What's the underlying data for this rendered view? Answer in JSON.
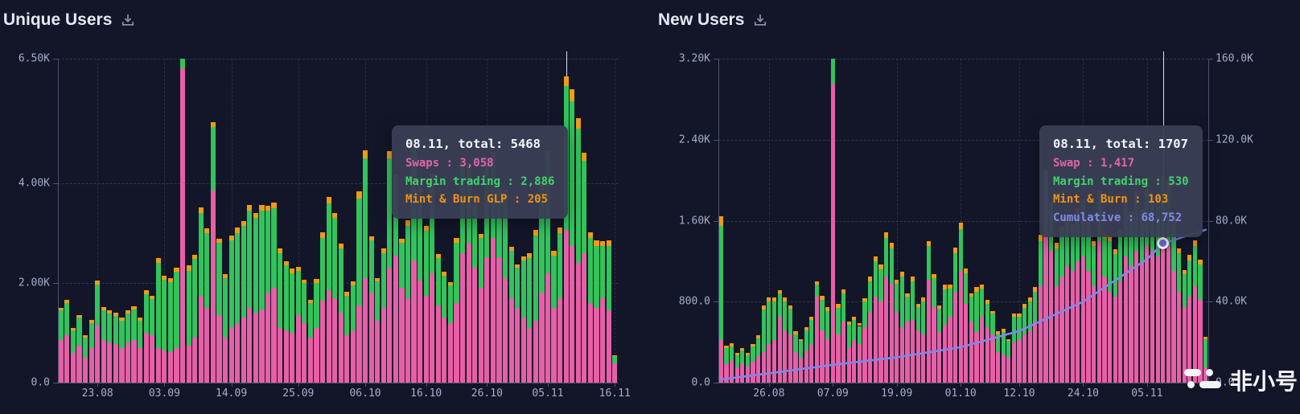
{
  "page": {
    "background": "#131629"
  },
  "watermark": {
    "text": "非小号",
    "color": "#f4f5f9"
  },
  "chart_data": [
    {
      "type": "bar",
      "stacked": true,
      "title": "Unique Users",
      "grid": true,
      "legend_position": "none",
      "x_tick_labels": [
        "23.08",
        "03.09",
        "14.09",
        "25.09",
        "06.10",
        "16.10",
        "26.10",
        "05.11",
        "16.11"
      ],
      "x_tick_indices": [
        6,
        17,
        28,
        39,
        50,
        60,
        70,
        80,
        91
      ],
      "ylim": [
        0,
        6500
      ],
      "y_ticks": [
        {
          "value": 0,
          "label": "0.0"
        },
        {
          "value": 2000,
          "label": "2.00K"
        },
        {
          "value": 4000,
          "label": "4.00K"
        },
        {
          "value": 6500,
          "label": "6.50K"
        }
      ],
      "series": [
        {
          "name": "Swaps",
          "color": "#e75fa6",
          "values": [
            850,
            950,
            600,
            750,
            500,
            700,
            1150,
            850,
            800,
            780,
            700,
            800,
            850,
            700,
            1000,
            950,
            700,
            650,
            620,
            700,
            6300,
            750,
            900,
            1750,
            1500,
            3850,
            1350,
            900,
            1100,
            1200,
            1300,
            1500,
            1400,
            1450,
            1800,
            1900,
            1100,
            1050,
            1000,
            1350,
            1200,
            900,
            1100,
            1650,
            1850,
            1700,
            1400,
            950,
            1050,
            1550,
            2100,
            1800,
            1250,
            1500,
            2300,
            2550,
            1900,
            1700,
            2450,
            2050,
            1750,
            2200,
            1550,
            1300,
            1200,
            1600,
            2600,
            2800,
            2300,
            1900,
            2500,
            2900,
            2500,
            2100,
            1700,
            1500,
            1300,
            1100,
            1250,
            1800,
            2200,
            1500,
            1700,
            3058,
            2750,
            2400,
            2600,
            1600,
            1500,
            1700,
            1450,
            380
          ]
        },
        {
          "name": "Margin trading",
          "color": "#32c35b",
          "values": [
            600,
            650,
            450,
            550,
            400,
            500,
            820,
            600,
            580,
            560,
            550,
            580,
            620,
            540,
            770,
            720,
            1700,
            1420,
            1400,
            1520,
            400,
            1500,
            1580,
            1650,
            1500,
            1280,
            1450,
            1200,
            1750,
            1800,
            1850,
            1950,
            1900,
            2000,
            1650,
            1600,
            1500,
            1300,
            1200,
            900,
            800,
            700,
            900,
            1250,
            1750,
            1600,
            1300,
            800,
            900,
            2150,
            2400,
            1050,
            780,
            1100,
            2200,
            1500,
            900,
            1450,
            2300,
            1800,
            1300,
            1850,
            950,
            850,
            750,
            1200,
            1700,
            1500,
            1200,
            1000,
            1900,
            1600,
            1300,
            1650,
            950,
            800,
            1150,
            1400,
            1700,
            2100,
            2300,
            1050,
            1300,
            2886,
            2900,
            2700,
            1850,
            1300,
            1250,
            1050,
            1300,
            150
          ]
        },
        {
          "name": "Mint & Burn GLP",
          "color": "#f19b10",
          "values": [
            55,
            60,
            50,
            60,
            45,
            60,
            80,
            60,
            70,
            60,
            55,
            65,
            70,
            60,
            80,
            80,
            100,
            80,
            80,
            90,
            50,
            100,
            90,
            110,
            100,
            90,
            90,
            80,
            100,
            110,
            100,
            120,
            110,
            120,
            100,
            110,
            90,
            80,
            90,
            80,
            70,
            60,
            80,
            110,
            120,
            110,
            90,
            70,
            80,
            140,
            160,
            90,
            70,
            90,
            150,
            120,
            80,
            110,
            160,
            130,
            100,
            140,
            80,
            70,
            60,
            100,
            130,
            120,
            100,
            90,
            140,
            130,
            110,
            120,
            80,
            70,
            90,
            100,
            110,
            140,
            150,
            90,
            110,
            205,
            230,
            200,
            160,
            110,
            100,
            90,
            110,
            20
          ]
        }
      ],
      "hover": {
        "index": 83,
        "line_color": "#dde1ec"
      },
      "tooltip": {
        "title": "08.11, total: 5468",
        "rows": [
          {
            "label": "Swaps",
            "value": "3,058",
            "color": "#e263ab"
          },
          {
            "label": "Margin trading",
            "value": "2,886",
            "color": "#41d36c"
          },
          {
            "label": "Mint & Burn GLP",
            "value": "205",
            "color": "#ef9214"
          }
        ]
      }
    },
    {
      "type": "bar",
      "stacked": true,
      "title": "New Users",
      "grid": true,
      "legend_position": "none",
      "x_tick_labels": [
        "26.08",
        "07.09",
        "19.09",
        "01.10",
        "12.10",
        "24.10",
        "05.11"
      ],
      "x_tick_indices": [
        9,
        21,
        33,
        45,
        56,
        68,
        80
      ],
      "ylim": [
        0,
        3200
      ],
      "y_ticks": [
        {
          "value": 0,
          "label": "0.0"
        },
        {
          "value": 800,
          "label": "800.0"
        },
        {
          "value": 1600,
          "label": "1.60K"
        },
        {
          "value": 2400,
          "label": "2.40K"
        },
        {
          "value": 3200,
          "label": "3.20K"
        }
      ],
      "y2lim": [
        0,
        160000
      ],
      "y2_ticks": [
        {
          "value": 0,
          "label": "0.0"
        },
        {
          "value": 40000,
          "label": "40.0K"
        },
        {
          "value": 80000,
          "label": "80.0K"
        },
        {
          "value": 120000,
          "label": "120.0K"
        },
        {
          "value": 160000,
          "label": "160.0K"
        }
      ],
      "series": [
        {
          "name": "Swap",
          "color": "#e75fa6",
          "values": [
            420,
            180,
            220,
            150,
            190,
            160,
            210,
            260,
            300,
            380,
            420,
            650,
            520,
            480,
            300,
            250,
            320,
            380,
            850,
            520,
            430,
            2950,
            480,
            600,
            350,
            420,
            380,
            550,
            700,
            850,
            800,
            1050,
            980,
            700,
            550,
            600,
            620,
            520,
            480,
            1020,
            750,
            500,
            570,
            650,
            900,
            1100,
            780,
            600,
            500,
            650,
            550,
            480,
            300,
            280,
            250,
            400,
            420,
            480,
            520,
            600,
            950,
            1550,
            1300,
            950,
            1050,
            1150,
            1100,
            1200,
            1250,
            1100,
            950,
            1400,
            1050,
            900,
            850,
            1000,
            1250,
            1150,
            1300,
            1200,
            1350,
            1300,
            1250,
            1417,
            1350,
            1100,
            900,
            750,
            850,
            950,
            820,
            150
          ]
        },
        {
          "name": "Margin trading",
          "color": "#32c35b",
          "values": [
            1130,
            160,
            140,
            120,
            130,
            110,
            150,
            180,
            420,
            420,
            380,
            230,
            280,
            250,
            180,
            160,
            200,
            240,
            120,
            300,
            280,
            350,
            260,
            280,
            220,
            200,
            180,
            250,
            300,
            350,
            320,
            380,
            350,
            280,
            500,
            250,
            380,
            230,
            320,
            330,
            280,
            230,
            350,
            280,
            380,
            420,
            300,
            250,
            400,
            280,
            230,
            200,
            180,
            220,
            160,
            250,
            230,
            260,
            280,
            300,
            450,
            480,
            420,
            380,
            430,
            450,
            420,
            460,
            480,
            430,
            400,
            430,
            380,
            500,
            420,
            450,
            500,
            480,
            520,
            450,
            500,
            480,
            520,
            530,
            550,
            480,
            380,
            320,
            360,
            400,
            350,
            280
          ]
        },
        {
          "name": "Mint & Burn",
          "color": "#f19b10",
          "values": [
            90,
            25,
            30,
            20,
            25,
            20,
            25,
            30,
            40,
            45,
            40,
            35,
            40,
            35,
            25,
            20,
            30,
            35,
            30,
            40,
            35,
            40,
            35,
            40,
            30,
            30,
            25,
            35,
            45,
            50,
            45,
            55,
            50,
            40,
            45,
            35,
            45,
            30,
            40,
            50,
            40,
            30,
            45,
            40,
            55,
            60,
            45,
            35,
            45,
            40,
            35,
            30,
            25,
            30,
            20,
            35,
            30,
            35,
            40,
            45,
            60,
            70,
            60,
            55,
            60,
            60,
            55,
            60,
            65,
            55,
            50,
            65,
            50,
            55,
            50,
            55,
            65,
            60,
            70,
            60,
            65,
            60,
            65,
            103,
            90,
            60,
            50,
            45,
            50,
            55,
            45,
            20
          ]
        }
      ],
      "cumulative": {
        "name": "Cumulative",
        "color": "#8287e9",
        "axis": "right",
        "values": [
          1600,
          1933,
          2267,
          2600,
          2933,
          3267,
          3600,
          3933,
          4267,
          4600,
          4950,
          5300,
          5650,
          6000,
          6350,
          6700,
          7050,
          7400,
          7750,
          8100,
          8450,
          8800,
          9108,
          9417,
          9725,
          10033,
          10342,
          10650,
          10958,
          11267,
          11575,
          11883,
          12192,
          12500,
          12917,
          13333,
          13750,
          14167,
          14583,
          15000,
          15417,
          15833,
          16250,
          16667,
          17083,
          17500,
          18227,
          18955,
          19682,
          20409,
          21136,
          21864,
          22591,
          23318,
          24045,
          24773,
          25500,
          26708,
          27917,
          29125,
          30333,
          31542,
          32750,
          33958,
          35167,
          36375,
          37583,
          38792,
          40000,
          41750,
          43500,
          45250,
          47000,
          48750,
          50500,
          52250,
          54000,
          55750,
          57500,
          59250,
          61000,
          63584,
          66168,
          68752,
          69595,
          70439,
          71282,
          72126,
          72969,
          73813,
          74656,
          75500
        ]
      },
      "hover": {
        "index": 83,
        "line_color": "#dde1ec",
        "marker": true,
        "marker_value": 68752
      },
      "tooltip": {
        "title": "08.11, total: 1707",
        "rows": [
          {
            "label": "Swap",
            "value": "1,417",
            "color": "#e263ab"
          },
          {
            "label": "Margin trading",
            "value": "530",
            "color": "#41d36c"
          },
          {
            "label": "Mint & Burn",
            "value": "103",
            "color": "#ef9214"
          },
          {
            "label": "Cumulative",
            "value": "68,752",
            "color": "#828ae8"
          }
        ]
      }
    }
  ]
}
